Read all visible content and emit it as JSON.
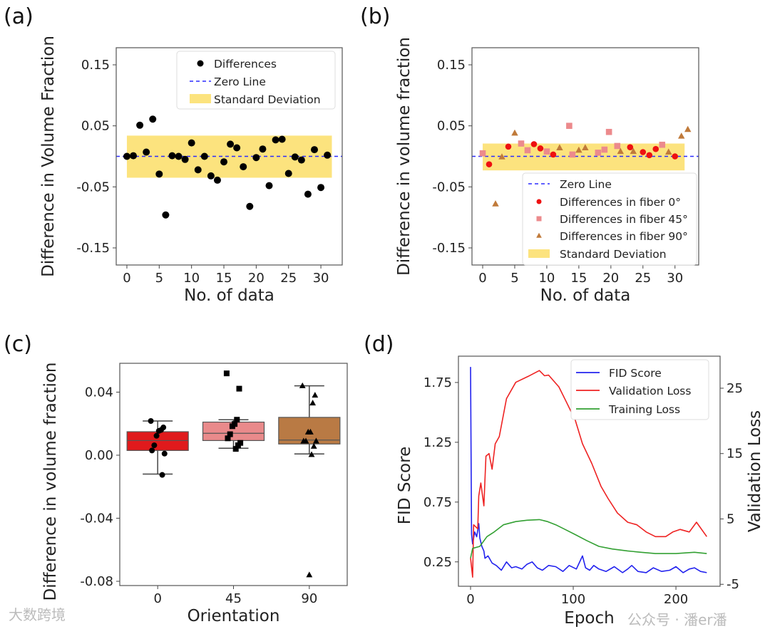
{
  "watermark": {
    "left": "大数跨境",
    "right": "公众号 · 潘er潘"
  },
  "colors": {
    "band": "#fce37e",
    "zero": "#2b2bff",
    "fiber0": "#ee1111",
    "fiber45": "#ec8a8c",
    "fiber90": "#c07a3a",
    "fid": "#2222ee",
    "val": "#ee2222",
    "train": "#33a033"
  },
  "chart_data": [
    {
      "panel": "(a)",
      "type": "scatter",
      "xlabel": "No. of data",
      "ylabel": "Difference in Volume Fraction",
      "xlim": [
        -1.65,
        33.3
      ],
      "ylim": [
        -0.178,
        0.178
      ],
      "xticks": [
        0,
        5,
        10,
        15,
        20,
        25,
        30
      ],
      "xtick_labels": [
        "0",
        "5",
        "10",
        "15",
        "20",
        "25",
        "30"
      ],
      "yticks": [
        0.15,
        0.05,
        -0.05,
        -0.15
      ],
      "ytick_labels": [
        "0.15",
        "0.05",
        "-0.05",
        "-0.15"
      ],
      "zero_line": 0,
      "std_band": {
        "x": [
          0,
          31.7
        ],
        "y": [
          -0.035,
          0.034
        ]
      },
      "legend": {
        "position": "top-right",
        "entries": [
          "Differences",
          "Zero Line",
          "Standard Deviation"
        ]
      },
      "series": [
        {
          "name": "Differences",
          "marker": "circle",
          "x": [
            0,
            1,
            2,
            3,
            4,
            5,
            6,
            7,
            8,
            9,
            10,
            11,
            12,
            13,
            14,
            15,
            16,
            17,
            18,
            19,
            20,
            21,
            22,
            23,
            24,
            25,
            26,
            27,
            28,
            29,
            30,
            31
          ],
          "y": [
            0.0,
            0.001,
            0.051,
            0.007,
            0.061,
            -0.029,
            -0.096,
            0.001,
            0.0,
            -0.005,
            0.022,
            -0.022,
            0.0,
            -0.032,
            -0.039,
            -0.009,
            0.02,
            0.014,
            -0.017,
            -0.082,
            -0.002,
            0.012,
            -0.048,
            0.027,
            0.028,
            -0.028,
            -0.001,
            -0.006,
            -0.062,
            0.011,
            -0.051,
            0.002
          ]
        }
      ]
    },
    {
      "panel": "(b)",
      "type": "scatter",
      "xlabel": "No. of data",
      "ylabel": "Difference in volume fraction",
      "xlim": [
        -1.67,
        33.7
      ],
      "ylim": [
        -0.178,
        0.178
      ],
      "xticks": [
        0,
        5,
        10,
        15,
        20,
        25,
        30
      ],
      "xtick_labels": [
        "0",
        "5",
        "10",
        "15",
        "20",
        "25",
        "30"
      ],
      "yticks": [
        0.15,
        0.05,
        -0.05,
        -0.15
      ],
      "ytick_labels": [
        "0.15",
        "0.05",
        "-0.05",
        "-0.15"
      ],
      "zero_line": 0,
      "std_band": {
        "x": [
          0,
          31.5
        ],
        "y": [
          -0.023,
          0.021
        ]
      },
      "legend": {
        "position": "lower-right",
        "entries": [
          "Zero Line",
          "Differences in fiber 0°",
          "Differences in fiber 45°",
          "Differences in fiber 90°",
          "Standard Deviation"
        ]
      },
      "series": [
        {
          "name": "Differences in fiber 0°",
          "marker": "circle",
          "x": [
            1,
            4,
            8,
            9,
            11,
            23,
            25,
            26,
            27,
            30
          ],
          "y": [
            -0.013,
            0.016,
            0.02,
            0.013,
            0.003,
            0.015,
            0.007,
            0.002,
            0.012,
            0.0
          ]
        },
        {
          "name": "Differences in fiber 45°",
          "marker": "square",
          "x": [
            0,
            6,
            7,
            10,
            13.5,
            14,
            18,
            19,
            19.7,
            21,
            28
          ],
          "y": [
            0.005,
            0.021,
            0.01,
            0.008,
            0.05,
            0.003,
            0.006,
            0.011,
            0.04,
            0.017,
            0.019
          ]
        },
        {
          "name": "Differences in fiber 90°",
          "marker": "triangle",
          "x": [
            2,
            3,
            5,
            12,
            15,
            16,
            21.5,
            23.5,
            29,
            31,
            32
          ],
          "y": [
            -0.078,
            -0.001,
            0.038,
            0.014,
            0.01,
            0.014,
            0.008,
            0.008,
            0.007,
            0.033,
            0.044
          ]
        }
      ]
    },
    {
      "panel": "(c)",
      "type": "box",
      "xlabel": "Orientation",
      "ylabel": "Difference in volume fraction",
      "ylim": [
        -0.0827,
        0.0583
      ],
      "categories": [
        "0",
        "45",
        "90"
      ],
      "yticks": [
        0.04,
        0.0,
        -0.04,
        -0.08
      ],
      "ytick_labels": [
        "0.04",
        "0.00",
        "-0.04",
        "-0.08"
      ],
      "boxes": [
        {
          "name": "0",
          "q1": 0.003,
          "median": 0.0093,
          "q3": 0.0149,
          "whisker_low": -0.012,
          "whisker_high": 0.0217,
          "marker": "circle",
          "points": [
            0.0217,
            0.0176,
            0.016,
            0.0154,
            0.0123,
            0.0063,
            0.003,
            0.001,
            -0.0125
          ]
        },
        {
          "name": "45",
          "q1": 0.0093,
          "median": 0.0139,
          "q3": 0.021,
          "whisker_low": 0.0044,
          "whisker_high": 0.0225,
          "marker": "square",
          "points": [
            0.0519,
            0.0422,
            0.0225,
            0.0198,
            0.0184,
            0.0133,
            0.0107,
            0.0078,
            0.0063,
            0.004
          ]
        },
        {
          "name": "90",
          "q1": 0.0071,
          "median": 0.0096,
          "q3": 0.024,
          "whisker_low": 0.0008,
          "whisker_high": 0.044,
          "marker": "triangle",
          "points": [
            0.044,
            0.038,
            0.033,
            0.0146,
            0.0146,
            0.0089,
            0.0089,
            0.0089,
            0.0056,
            0.0003,
            -0.076
          ]
        }
      ]
    },
    {
      "panel": "(d)",
      "type": "line",
      "xlabel": "Epoch",
      "ylabel": "FID Score",
      "ylabel_right": "Validation Loss",
      "xlim": [
        -11.8,
        243
      ],
      "ylim": [
        0.046,
        1.97
      ],
      "ylim_right": [
        -5.3,
        29.9
      ],
      "xticks": [
        0,
        100,
        200
      ],
      "xtick_labels": [
        "0",
        "100",
        "200"
      ],
      "yticks": [
        0.25,
        0.75,
        1.25,
        1.75
      ],
      "ytick_labels": [
        "0.25",
        "0.75",
        "1.25",
        "1.75"
      ],
      "yticks_right": [
        -5,
        5,
        15,
        25
      ],
      "ytick_labels_right": [
        "-5",
        "5",
        "15",
        "25"
      ],
      "legend": {
        "position": "top-right",
        "entries": [
          "FID Score",
          "Validation Loss",
          "Training Loss"
        ]
      },
      "series": [
        {
          "name": "FID Score",
          "axis": "left",
          "x": [
            0,
            1,
            2,
            4,
            6,
            8,
            9,
            11,
            13,
            14,
            17,
            21,
            25,
            30,
            35,
            40,
            44,
            50,
            55,
            60,
            65,
            70,
            76,
            83,
            90,
            96,
            103,
            109,
            112,
            116,
            120,
            125,
            132,
            140,
            148,
            153,
            157,
            163,
            171,
            178,
            186,
            194,
            200,
            207,
            213,
            218,
            224,
            230
          ],
          "y": [
            1.88,
            0.48,
            0.4,
            0.5,
            0.46,
            0.57,
            0.45,
            0.38,
            0.34,
            0.28,
            0.3,
            0.24,
            0.22,
            0.18,
            0.25,
            0.2,
            0.21,
            0.19,
            0.23,
            0.25,
            0.2,
            0.18,
            0.22,
            0.21,
            0.17,
            0.22,
            0.19,
            0.3,
            0.2,
            0.18,
            0.22,
            0.19,
            0.17,
            0.21,
            0.16,
            0.19,
            0.22,
            0.17,
            0.16,
            0.2,
            0.17,
            0.18,
            0.21,
            0.16,
            0.19,
            0.2,
            0.17,
            0.16
          ]
        },
        {
          "name": "Validation Loss",
          "axis": "right",
          "x": [
            0,
            2,
            3,
            7,
            8,
            10,
            13,
            14,
            15,
            18,
            21,
            24,
            28,
            35,
            44,
            56,
            62,
            67,
            72,
            76,
            86,
            93,
            102,
            109,
            118,
            127,
            134,
            143,
            153,
            162,
            171,
            180,
            190,
            197,
            204,
            213,
            220,
            230
          ],
          "y": [
            -1,
            -3.9,
            4.1,
            3.5,
            8.5,
            10.5,
            7,
            11,
            14.6,
            15,
            12.6,
            16.5,
            17.6,
            23.4,
            25.9,
            26.8,
            27.3,
            27.7,
            26.9,
            27,
            25.2,
            23,
            20.1,
            16.5,
            13.5,
            10,
            8.1,
            5.9,
            4.5,
            4.1,
            3,
            2.3,
            2.3,
            3.0,
            3.4,
            3,
            4.5,
            2.3
          ]
        },
        {
          "name": "Training Loss",
          "axis": "right",
          "x": [
            0,
            2,
            9,
            16,
            23,
            32,
            44,
            55,
            67,
            75,
            83,
            92,
            102,
            113,
            125,
            138,
            153,
            166,
            180,
            200,
            218,
            230
          ],
          "y": [
            -1,
            0.5,
            0.8,
            2.3,
            3,
            4.1,
            4.6,
            4.8,
            4.9,
            4.6,
            4.1,
            3.4,
            2.6,
            1.7,
            0.8,
            0.4,
            0.1,
            -0.1,
            -0.3,
            -0.3,
            -0.1,
            -0.3
          ]
        }
      ]
    }
  ]
}
